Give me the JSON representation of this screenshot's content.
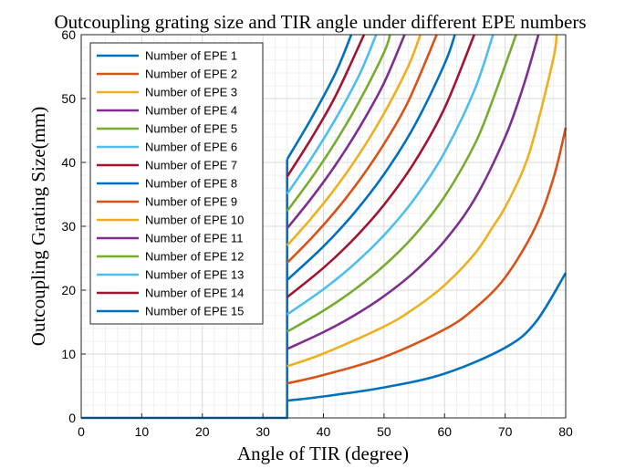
{
  "chart_data": {
    "type": "line",
    "title": "Outcoupling grating size and TIR angle under different EPE numbers",
    "xlabel": "Angle of TIR (degree)",
    "ylabel": "Outcoupling Grating Size(mm)",
    "xlim": [
      0,
      80
    ],
    "ylim": [
      0,
      60
    ],
    "xticks": [
      "0",
      "10",
      "20",
      "30",
      "40",
      "50",
      "60",
      "70",
      "80"
    ],
    "yticks": [
      "0",
      "10",
      "20",
      "30",
      "40",
      "50",
      "60"
    ],
    "grid": true,
    "minor_grid": true,
    "legend_position": "top-left",
    "critical_angle": 34,
    "series": [
      {
        "name": "Number of EPE 1",
        "color": "#0072BD",
        "points": [
          [
            0,
            0
          ],
          [
            34,
            0
          ],
          [
            34,
            2.7
          ],
          [
            40,
            3.36
          ],
          [
            50,
            4.77
          ],
          [
            60,
            6.93
          ],
          [
            70,
            10.99
          ],
          [
            75,
            14.93
          ],
          [
            80,
            22.69
          ]
        ]
      },
      {
        "name": "Number of EPE 2",
        "color": "#D95319",
        "points": [
          [
            34,
            5.4
          ],
          [
            40,
            6.71
          ],
          [
            50,
            9.53
          ],
          [
            60,
            13.86
          ],
          [
            65,
            17.16
          ],
          [
            70,
            21.98
          ],
          [
            75,
            29.86
          ],
          [
            78,
            37.6
          ],
          [
            80,
            45.4
          ]
        ]
      },
      {
        "name": "Number of EPE 3",
        "color": "#EDB120",
        "points": [
          [
            34,
            8.09
          ],
          [
            40,
            10.07
          ],
          [
            50,
            14.3
          ],
          [
            55,
            17.14
          ],
          [
            60,
            20.78
          ],
          [
            65,
            25.73
          ],
          [
            68,
            29.96
          ],
          [
            70,
            32.97
          ],
          [
            73,
            38.9
          ],
          [
            75,
            44.8
          ],
          [
            78,
            56.4
          ],
          [
            78.5,
            60
          ]
        ]
      },
      {
        "name": "Number of EPE 4",
        "color": "#7E2F8E",
        "points": [
          [
            34,
            10.79
          ],
          [
            40,
            13.43
          ],
          [
            45,
            16.0
          ],
          [
            50,
            19.07
          ],
          [
            55,
            22.85
          ],
          [
            60,
            27.71
          ],
          [
            65,
            34.31
          ],
          [
            70,
            43.96
          ],
          [
            73,
            51.9
          ],
          [
            75.5,
            60
          ]
        ]
      },
      {
        "name": "Number of EPE 5",
        "color": "#77AC30",
        "points": [
          [
            34,
            13.49
          ],
          [
            40,
            16.78
          ],
          [
            45,
            20.0
          ],
          [
            50,
            23.84
          ],
          [
            55,
            28.56
          ],
          [
            60,
            34.64
          ],
          [
            65,
            42.89
          ],
          [
            68,
            49.92
          ],
          [
            71.8,
            60
          ]
        ]
      },
      {
        "name": "Number of EPE 6",
        "color": "#4DBEEE",
        "points": [
          [
            34,
            16.19
          ],
          [
            40,
            20.14
          ],
          [
            45,
            24.0
          ],
          [
            50,
            28.6
          ],
          [
            55,
            34.27
          ],
          [
            60,
            41.57
          ],
          [
            65,
            51.47
          ],
          [
            68,
            60
          ]
        ]
      },
      {
        "name": "Number of EPE 7",
        "color": "#A2142F",
        "points": [
          [
            34,
            18.89
          ],
          [
            40,
            23.49
          ],
          [
            45,
            28.0
          ],
          [
            50,
            33.37
          ],
          [
            55,
            39.99
          ],
          [
            60,
            48.5
          ],
          [
            64.9,
            60
          ]
        ]
      },
      {
        "name": "Number of EPE 8",
        "color": "#0072BD",
        "points": [
          [
            34,
            21.58
          ],
          [
            40,
            26.85
          ],
          [
            45,
            32.0
          ],
          [
            50,
            38.14
          ],
          [
            55,
            45.7
          ],
          [
            60,
            55.43
          ],
          [
            61.7,
            60
          ]
        ]
      },
      {
        "name": "Number of EPE 9",
        "color": "#D95319",
        "points": [
          [
            34,
            24.28
          ],
          [
            38,
            28.13
          ],
          [
            42,
            32.41
          ],
          [
            46,
            37.28
          ],
          [
            50,
            42.9
          ],
          [
            54,
            49.54
          ],
          [
            58.7,
            60
          ]
        ]
      },
      {
        "name": "Number of EPE 10",
        "color": "#EDB120",
        "points": [
          [
            34,
            26.98
          ],
          [
            38,
            31.26
          ],
          [
            42,
            36.01
          ],
          [
            46,
            41.42
          ],
          [
            50,
            47.67
          ],
          [
            54,
            55.05
          ],
          [
            56,
            60
          ]
        ]
      },
      {
        "name": "Number of EPE 11",
        "color": "#7E2F8E",
        "points": [
          [
            34,
            29.68
          ],
          [
            38,
            34.38
          ],
          [
            42,
            39.61
          ],
          [
            46,
            45.56
          ],
          [
            50,
            52.44
          ],
          [
            53.4,
            60
          ]
        ]
      },
      {
        "name": "Number of EPE 12",
        "color": "#77AC30",
        "points": [
          [
            34,
            32.38
          ],
          [
            38,
            37.51
          ],
          [
            42,
            43.21
          ],
          [
            46,
            49.7
          ],
          [
            50,
            57.21
          ],
          [
            51,
            60
          ]
        ]
      },
      {
        "name": "Number of EPE 13",
        "color": "#4DBEEE",
        "points": [
          [
            34,
            35.07
          ],
          [
            38,
            40.64
          ],
          [
            42,
            46.81
          ],
          [
            46,
            53.84
          ],
          [
            48.7,
            60
          ]
        ]
      },
      {
        "name": "Number of EPE 14",
        "color": "#A2142F",
        "points": [
          [
            34,
            37.77
          ],
          [
            38,
            43.76
          ],
          [
            42,
            50.41
          ],
          [
            46.7,
            60
          ]
        ]
      },
      {
        "name": "Number of EPE 15",
        "color": "#0072BD",
        "points": [
          [
            34,
            40.47
          ],
          [
            38,
            46.89
          ],
          [
            42,
            54.01
          ],
          [
            44.6,
            60
          ]
        ]
      }
    ]
  }
}
